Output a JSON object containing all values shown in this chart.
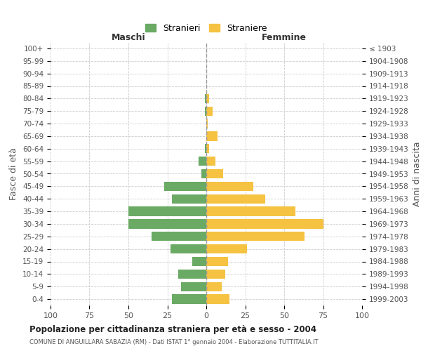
{
  "title": "Popolazione per cittadinanza straniera per età e sesso - 2004",
  "subtitle": "COMUNE DI ANGUILLARA SABAZIA (RM) - Dati ISTAT 1° gennaio 2004 - Elaborazione TUTTITALIA.IT",
  "ylabel_left": "Fasce di età",
  "ylabel_right": "Anni di nascita",
  "xlabel_left": "Maschi",
  "xlabel_right": "Femmine",
  "legend_male": "Stranieri",
  "legend_female": "Straniere",
  "color_male": "#6aaa64",
  "color_female": "#f5c242",
  "background_color": "#ffffff",
  "age_groups": [
    "100+",
    "95-99",
    "90-94",
    "85-89",
    "80-84",
    "75-79",
    "70-74",
    "65-69",
    "60-64",
    "55-59",
    "50-54",
    "45-49",
    "40-44",
    "35-39",
    "30-34",
    "25-29",
    "20-24",
    "15-19",
    "10-14",
    "5-9",
    "0-4"
  ],
  "birth_years": [
    "≤ 1903",
    "1904-1908",
    "1909-1913",
    "1914-1918",
    "1919-1923",
    "1924-1928",
    "1929-1933",
    "1934-1938",
    "1939-1943",
    "1944-1948",
    "1949-1953",
    "1954-1958",
    "1959-1963",
    "1964-1968",
    "1969-1973",
    "1974-1978",
    "1979-1983",
    "1984-1988",
    "1989-1993",
    "1994-1998",
    "1999-2003"
  ],
  "males": [
    0,
    0,
    0,
    0,
    1,
    1,
    0,
    0,
    1,
    5,
    3,
    27,
    22,
    50,
    50,
    35,
    23,
    9,
    18,
    16,
    22
  ],
  "females": [
    0,
    0,
    0,
    0,
    2,
    4,
    1,
    7,
    2,
    6,
    11,
    30,
    38,
    57,
    75,
    63,
    26,
    14,
    12,
    10,
    15
  ],
  "grid_color": "#cccccc",
  "bar_height": 0.75
}
